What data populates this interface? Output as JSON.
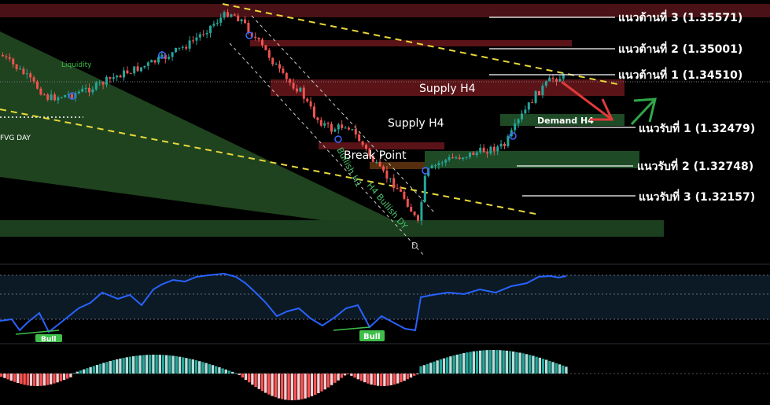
{
  "chart_data": [
    {
      "type": "candlestick",
      "title": "",
      "levels": {
        "resistance": [
          {
            "label": "แนวต้านที่ 3 (1.35571)",
            "value": 1.35571
          },
          {
            "label": "แนวต้านที่ 2 (1.35001)",
            "value": 1.35001
          },
          {
            "label": "แนวต้านที่ 1 (1.34510)",
            "value": 1.3451
          }
        ],
        "support": [
          {
            "label": "แนวรับที่ 1 (1.32479)",
            "value": 1.32479
          },
          {
            "label": "แนวรับที่ 2 (1.32748)",
            "value": 1.32748
          },
          {
            "label": "แนวรับที่ 3 (1.32157)",
            "value": 1.32157
          }
        ]
      },
      "zones": {
        "supply_h4_upper": "Supply H4",
        "supply_h4_lower": "Supply H4",
        "demand_h4": "Demand H4",
        "break_point": "Break Point"
      },
      "annotations": {
        "liquidity": "Liquidity",
        "fvg_day": "FVG DAY",
        "diag_1": "Bullish H1",
        "diag_2": "H4 Bullish DY",
        "d_marker": "D"
      },
      "projection": {
        "first": "down",
        "then": "up"
      },
      "colors": {
        "bull": "#26a69a",
        "bear": "#ef5350",
        "supply_zone": "#5a1418",
        "demand_zone": "#1e4a26",
        "trend_line": "#e8d83a",
        "projection_down": "#e03a3a",
        "projection_up": "#2fa84a"
      }
    },
    {
      "type": "line",
      "name": "oscillator",
      "badges": [
        "Bull",
        "Bull"
      ],
      "color": "#2962ff"
    },
    {
      "type": "histogram",
      "name": "momentum",
      "colors": {
        "pos_strong": "#26a69a",
        "pos_weak": "#b2dfdb",
        "neg_strong": "#ff5252",
        "neg_weak": "#ffcdd2"
      }
    }
  ]
}
